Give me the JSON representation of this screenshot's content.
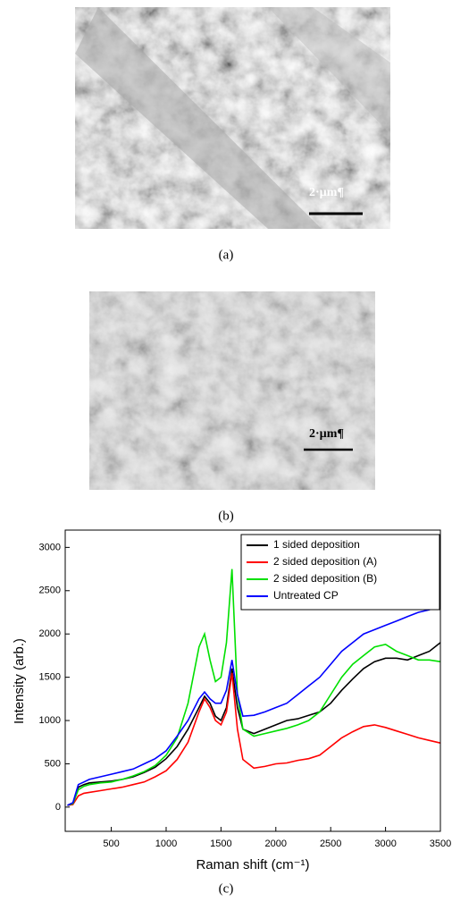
{
  "scale_bars": [
    "2·µm¶",
    "2·µm¶"
  ],
  "captions": [
    "(a)",
    "(b)",
    "(c)"
  ],
  "chart_data": {
    "type": "line",
    "x_label": "Raman shift (cm⁻¹)",
    "y_label": "Intensity (arb.)",
    "x": [
      100,
      150,
      200,
      250,
      300,
      400,
      500,
      600,
      700,
      800,
      900,
      1000,
      1100,
      1200,
      1300,
      1350,
      1400,
      1450,
      1500,
      1550,
      1600,
      1650,
      1700,
      1800,
      1900,
      2000,
      2100,
      2200,
      2300,
      2400,
      2500,
      2600,
      2700,
      2800,
      2900,
      3000,
      3100,
      3200,
      3300,
      3400,
      3500
    ],
    "series": [
      {
        "name": "1 sided deposition",
        "color": "#000000",
        "values": [
          20,
          40,
          230,
          260,
          280,
          290,
          300,
          320,
          350,
          400,
          460,
          560,
          700,
          900,
          1150,
          1280,
          1200,
          1050,
          1000,
          1150,
          1600,
          1150,
          900,
          850,
          900,
          950,
          1000,
          1020,
          1060,
          1100,
          1200,
          1350,
          1480,
          1600,
          1680,
          1720,
          1720,
          1700,
          1750,
          1800,
          1900
        ]
      },
      {
        "name": "2 sided deposition (A)",
        "color": "#ff0000",
        "values": [
          20,
          30,
          130,
          160,
          170,
          190,
          210,
          230,
          260,
          290,
          350,
          420,
          550,
          750,
          1100,
          1250,
          1150,
          1000,
          950,
          1100,
          1550,
          900,
          550,
          450,
          470,
          500,
          510,
          540,
          560,
          600,
          700,
          800,
          870,
          930,
          950,
          920,
          880,
          840,
          800,
          770,
          740
        ]
      },
      {
        "name": "2 sided deposition (B)",
        "color": "#00e000",
        "values": [
          20,
          40,
          200,
          240,
          260,
          280,
          290,
          320,
          360,
          410,
          480,
          600,
          800,
          1200,
          1850,
          2000,
          1700,
          1450,
          1500,
          1900,
          2750,
          1300,
          900,
          820,
          850,
          880,
          910,
          950,
          1000,
          1100,
          1300,
          1500,
          1650,
          1750,
          1850,
          1880,
          1800,
          1750,
          1700,
          1700,
          1680
        ]
      },
      {
        "name": "Untreated CP",
        "color": "#0000ff",
        "values": [
          20,
          50,
          260,
          290,
          320,
          350,
          380,
          410,
          440,
          500,
          560,
          650,
          820,
          1000,
          1250,
          1330,
          1250,
          1200,
          1200,
          1350,
          1700,
          1300,
          1050,
          1060,
          1100,
          1150,
          1200,
          1300,
          1400,
          1500,
          1650,
          1800,
          1900,
          2000,
          2050,
          2100,
          2150,
          2200,
          2250,
          2280,
          2350
        ]
      }
    ],
    "xlim": [
      80,
      3500
    ],
    "xticks": [
      500,
      1000,
      1500,
      2000,
      2500,
      3000,
      3500
    ],
    "ylim": [
      -280,
      3200
    ],
    "yticks": [
      0,
      500,
      1000,
      1500,
      2000,
      2500,
      3000
    ],
    "legend": "upper right"
  }
}
